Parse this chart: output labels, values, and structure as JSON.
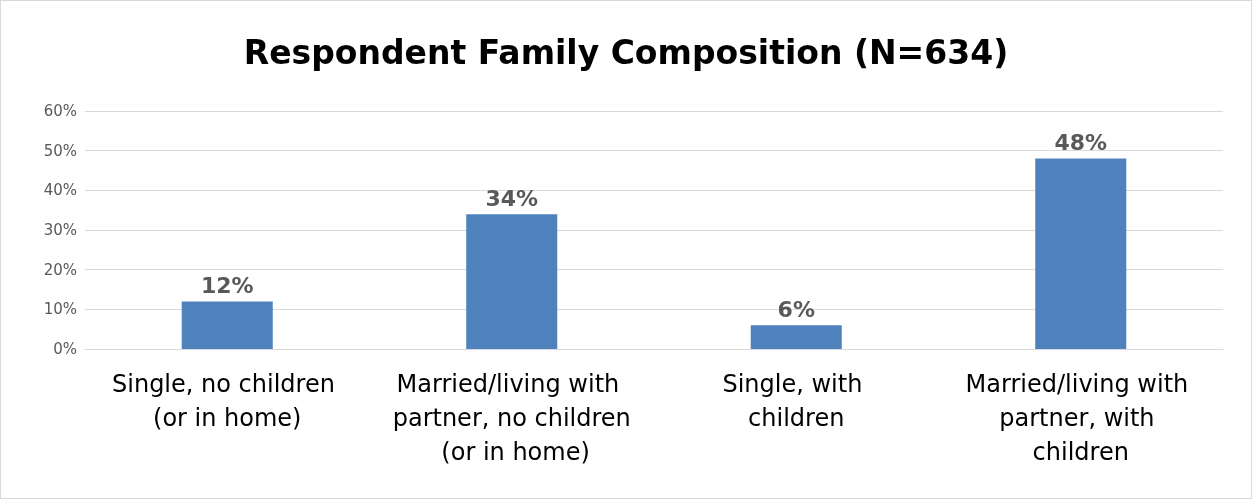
{
  "chart_data": {
    "type": "bar",
    "title": "Respondent Family Composition (N=634)",
    "categories": [
      "Single, no children (or in home)",
      "Married/living with partner, no children (or in home)",
      "Single, with children",
      "Married/living with partner, with children"
    ],
    "values": [
      12,
      34,
      6,
      48
    ],
    "color": "#4f81bd",
    "value_labels": [
      "12%",
      "34%",
      "6%",
      "48%"
    ],
    "ylim": [
      0,
      60
    ],
    "yticks": [
      {
        "value": 0,
        "label": "0%"
      },
      {
        "value": 10,
        "label": "10%"
      },
      {
        "value": 20,
        "label": "20%"
      },
      {
        "value": 30,
        "label": "30%"
      },
      {
        "value": 40,
        "label": "40%"
      },
      {
        "value": 50,
        "label": "50%"
      },
      {
        "value": 60,
        "label": "60%"
      }
    ],
    "grid": true
  }
}
